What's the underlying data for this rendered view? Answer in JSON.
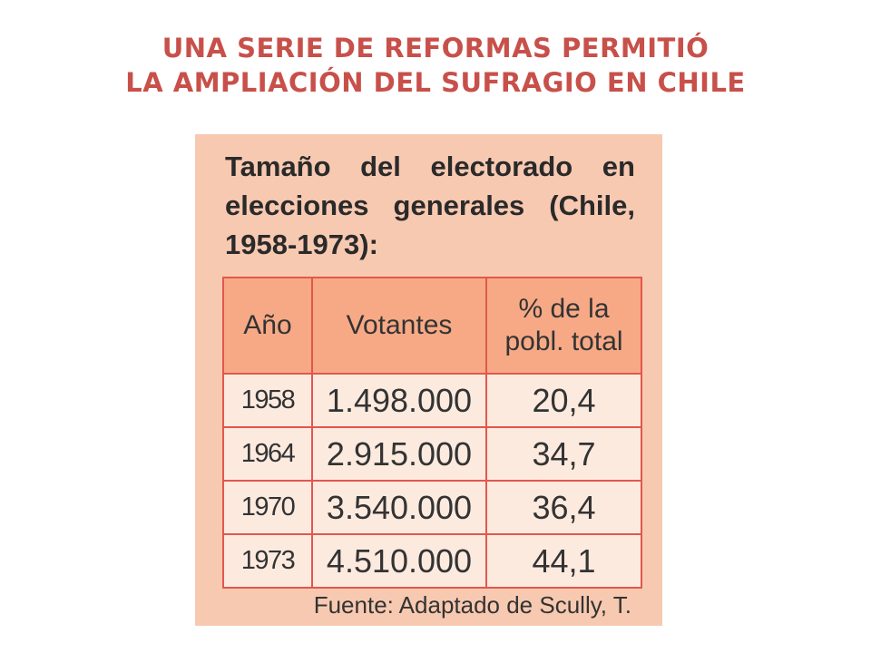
{
  "title": {
    "line1": "UNA SERIE DE REFORMAS PERMITIÓ",
    "line2": "LA AMPLIACIÓN DEL SUFRAGIO EN CHILE"
  },
  "card": {
    "heading": "Tamaño del electorado en elecciones generales (Chile, 1958-1973):",
    "table": {
      "headers": [
        "Año",
        "Votantes",
        "% de la pobl. total"
      ],
      "rows": [
        [
          "1958",
          "1.498.000",
          "20,4"
        ],
        [
          "1964",
          "2.915.000",
          "34,7"
        ],
        [
          "1970",
          "3.540.000",
          "36,4"
        ],
        [
          "1973",
          "4.510.000",
          "44,1"
        ]
      ]
    },
    "source": "Fuente: Adaptado de Scully, T."
  },
  "colors": {
    "title": "#c8504a",
    "card_background": "#f8c9b1",
    "table_header_background": "#f7a986",
    "table_body_background": "#fdeadf",
    "table_border": "#e2574c"
  }
}
